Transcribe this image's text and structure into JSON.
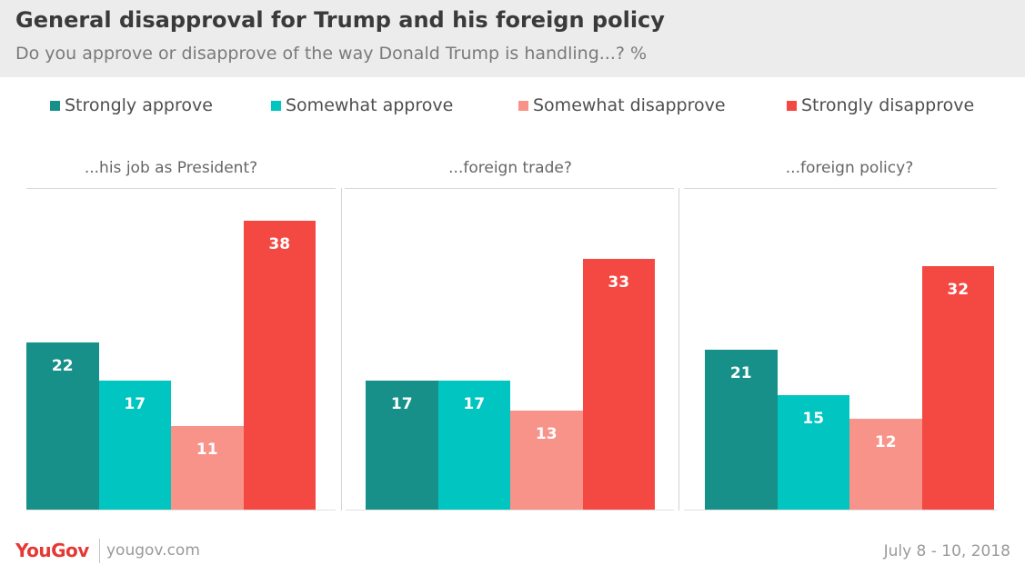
{
  "header": {
    "title": "General disapproval for Trump and his foreign policy",
    "subtitle": "Do you approve or disapprove of the way Donald Trump is handling...? %"
  },
  "colors": {
    "strongly_approve": "#17908a",
    "somewhat_approve": "#00c5c1",
    "somewhat_disapprove": "#f8938a",
    "strongly_disapprove": "#f44842",
    "header_bg": "#ececec",
    "brand": "#e53935"
  },
  "legend": [
    {
      "label": "Strongly approve",
      "color": "#17908a"
    },
    {
      "label": "Somewhat approve",
      "color": "#00c5c1"
    },
    {
      "label": "Somewhat disapprove",
      "color": "#f8938a"
    },
    {
      "label": "Strongly disapprove",
      "color": "#f44842"
    }
  ],
  "chart_data": {
    "type": "bar",
    "title": "General disapproval for Trump and his foreign policy",
    "subtitle": "Do you approve or disapprove of the way Donald Trump is handling...? %",
    "categories": [
      "...his job as President?",
      "...foreign trade?",
      "...foreign policy?"
    ],
    "series": [
      {
        "name": "Strongly approve",
        "values": [
          22,
          17,
          21
        ]
      },
      {
        "name": "Somewhat approve",
        "values": [
          17,
          17,
          15
        ]
      },
      {
        "name": "Somewhat disapprove",
        "values": [
          11,
          13,
          12
        ]
      },
      {
        "name": "Strongly disapprove",
        "values": [
          38,
          33,
          32
        ]
      }
    ],
    "ylim": [
      0,
      45
    ],
    "grid": false,
    "legend_position": "top"
  },
  "footer": {
    "brand": "YouGov",
    "site": "yougov.com",
    "date": "July 8 - 10, 2018"
  }
}
